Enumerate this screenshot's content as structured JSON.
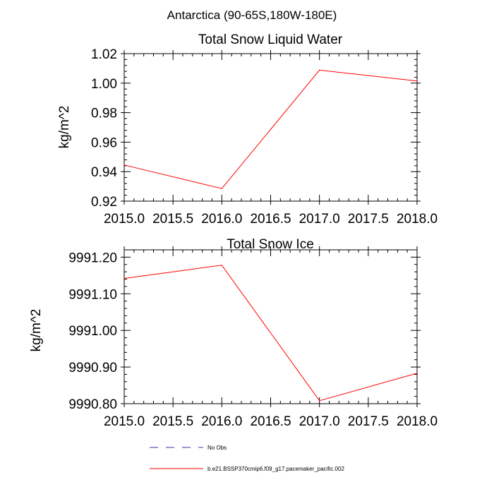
{
  "figure": {
    "title": "Antarctica (90-65S,180W-180E)"
  },
  "chart_data": [
    {
      "type": "line",
      "title": "Total Snow Liquid Water",
      "xlabel": "",
      "ylabel": "kg/m^2",
      "xlim": [
        2015.0,
        2018.0
      ],
      "ylim": [
        0.92,
        1.02
      ],
      "x_ticks": [
        "2015.0",
        "2015.5",
        "2016.0",
        "2016.5",
        "2017.0",
        "2017.5",
        "2018.0"
      ],
      "y_ticks": [
        "0.92",
        "0.94",
        "0.96",
        "0.98",
        "1.00",
        "1.02"
      ],
      "series": [
        {
          "name": "b.e21.BSSP370cmip6.f09_g17.pacemaker_pacific.002",
          "color": "#ff0000",
          "x": [
            2015.0,
            2016.0,
            2017.0,
            2018.0
          ],
          "y": [
            0.9445,
            0.9285,
            1.0088,
            1.0015
          ]
        }
      ],
      "grid": false
    },
    {
      "type": "line",
      "title": "Total Snow Ice",
      "xlabel": "",
      "ylabel": "kg/m^2",
      "xlim": [
        2015.0,
        2018.0
      ],
      "ylim": [
        9990.8,
        9991.22
      ],
      "x_ticks": [
        "2015.0",
        "2015.5",
        "2016.0",
        "2016.5",
        "2017.0",
        "2017.5",
        "2018.0"
      ],
      "y_ticks": [
        "9990.80",
        "9990.90",
        "9991.00",
        "9991.10",
        "9991.20"
      ],
      "series": [
        {
          "name": "b.e21.BSSP370cmip6.f09_g17.pacemaker_pacific.002",
          "color": "#ff0000",
          "x": [
            2015.0,
            2016.0,
            2017.0,
            2018.0
          ],
          "y": [
            9991.142,
            9991.178,
            9990.808,
            9990.883
          ]
        }
      ],
      "grid": false
    }
  ],
  "legend": {
    "placement": "bottom",
    "items": [
      {
        "label": "No Obs",
        "color": "#3333aa",
        "style": "dashed"
      },
      {
        "label": "b.e21.BSSP370cmip6.f09_g17.pacemaker_pacific.002",
        "color": "#ff0000",
        "style": "solid"
      }
    ]
  }
}
